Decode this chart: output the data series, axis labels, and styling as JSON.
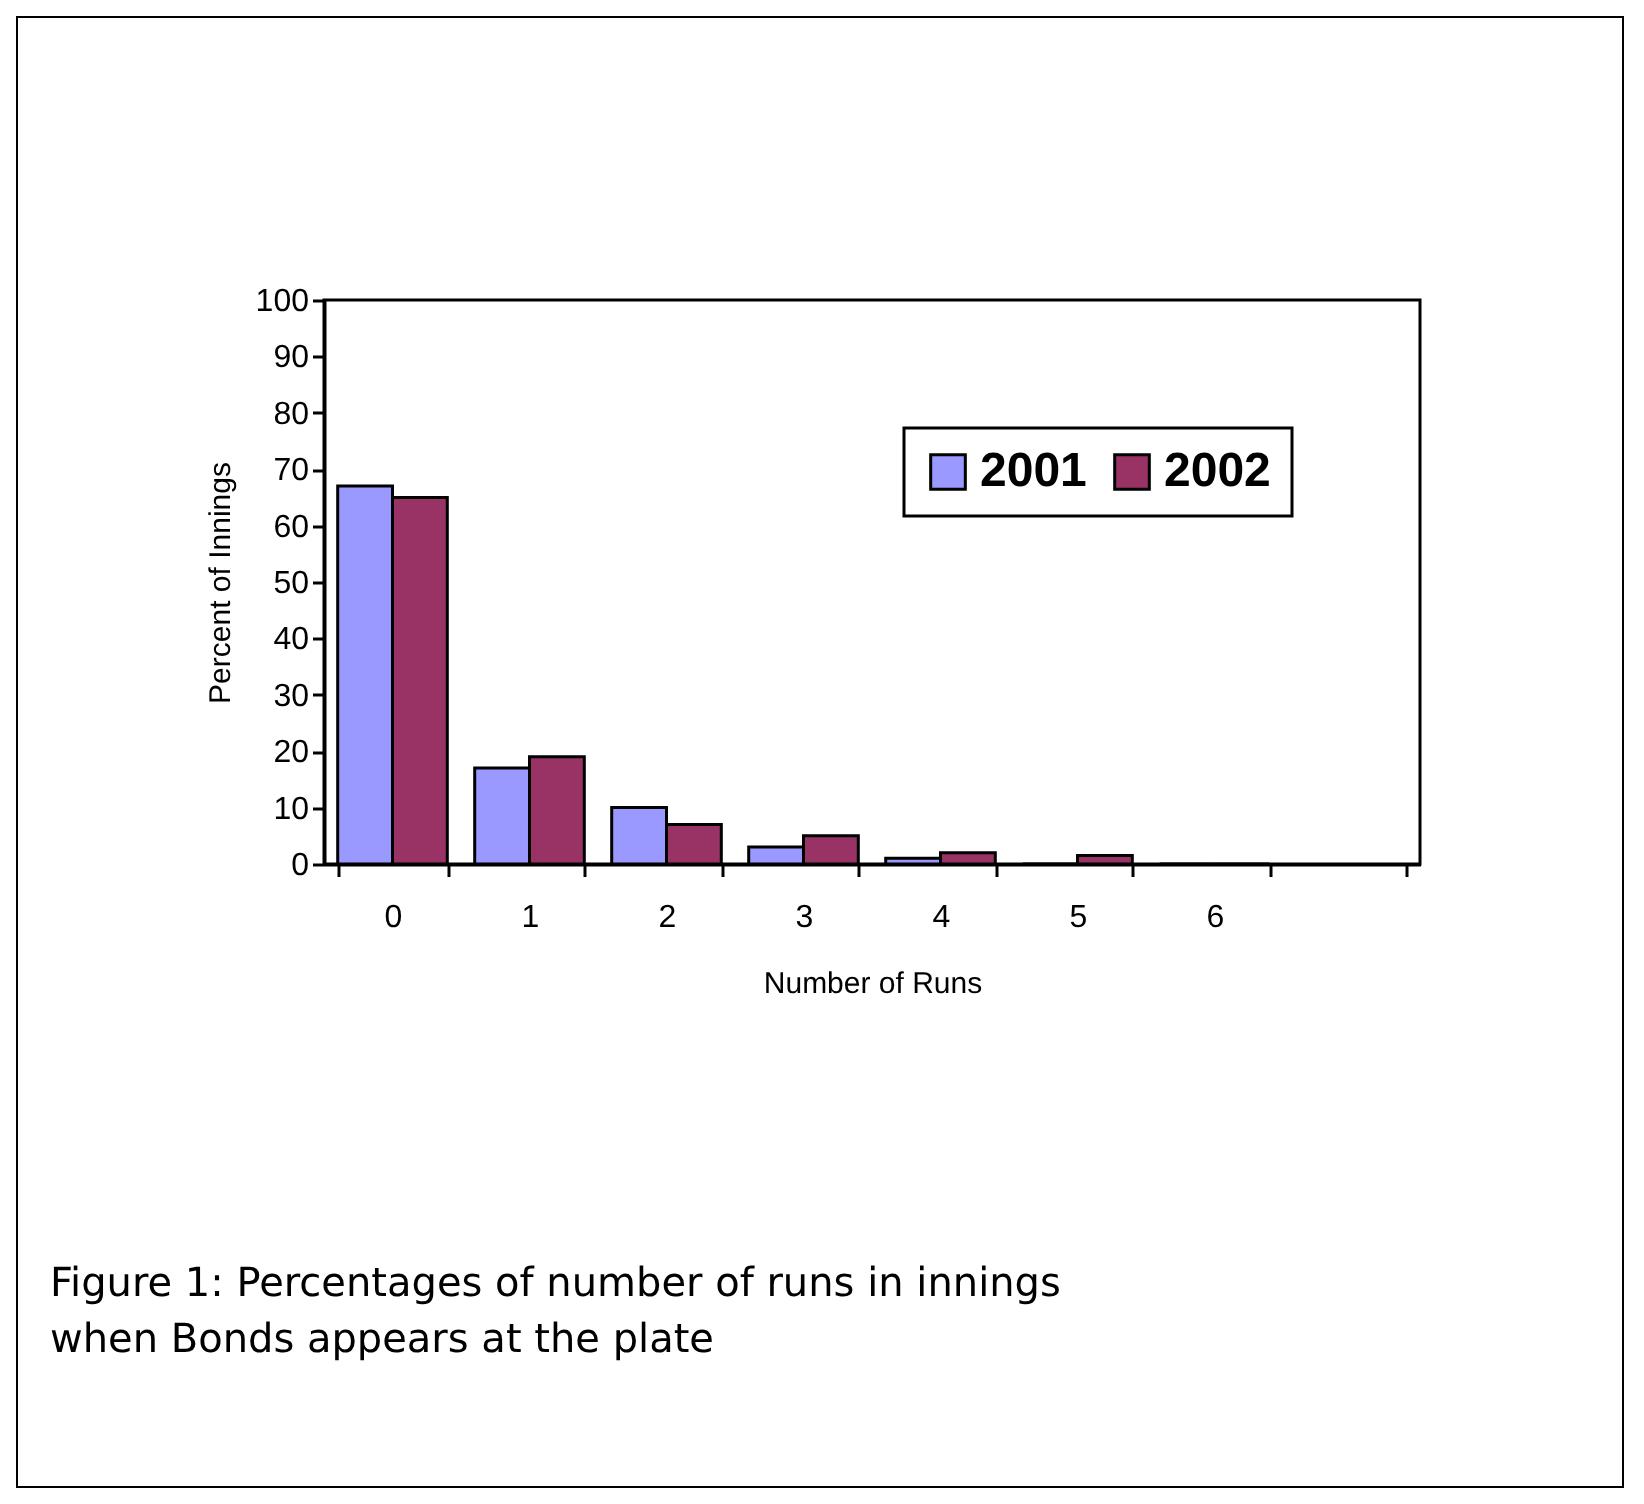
{
  "chart_data": {
    "type": "bar",
    "xlabel": "Number of Runs",
    "ylabel": "Percent of Innings",
    "categories": [
      "0",
      "1",
      "2",
      "3",
      "4",
      "5",
      "6",
      null
    ],
    "series": [
      {
        "name": "2001",
        "color": "#9999ff",
        "values": [
          67,
          17,
          10,
          3,
          1,
          0,
          0,
          null
        ]
      },
      {
        "name": "2002",
        "color": "#993366",
        "values": [
          65,
          19,
          7,
          5,
          2,
          1.5,
          0,
          null
        ]
      }
    ],
    "ylim": [
      0,
      100
    ],
    "yticks": [
      0,
      10,
      20,
      30,
      40,
      50,
      60,
      70,
      80,
      90,
      100
    ],
    "grid": false,
    "legend": "top right",
    "annotations": [
      "Figure 1: Percentages of number of runs in innings when Bonds appears at the plate"
    ]
  }
}
